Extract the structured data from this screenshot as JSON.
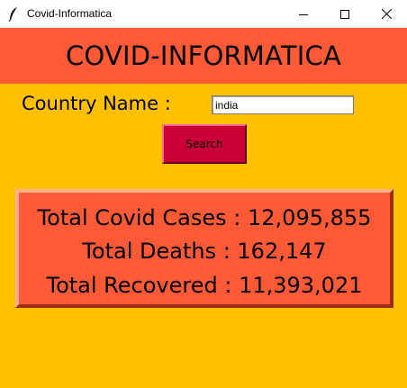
{
  "window": {
    "title": "Covid-Informatica",
    "icon": "feather-icon",
    "controls": [
      "minimize-icon",
      "maximize-icon",
      "close-icon"
    ]
  },
  "header": {
    "title": "COVID-INFORMATICA"
  },
  "form": {
    "country_label": "Country Name :",
    "country_value": "india",
    "search_label": "Search"
  },
  "stats": {
    "cases": "Total Covid Cases : 12,095,855",
    "deaths": "Total Deaths : 162,147",
    "recovered": "Total Recovered : 11,393,021"
  },
  "colors": {
    "background": "#ffc000",
    "header_band": "#ff5a36",
    "search_button": "#cc0039",
    "stats_box": "#ff5a36"
  }
}
